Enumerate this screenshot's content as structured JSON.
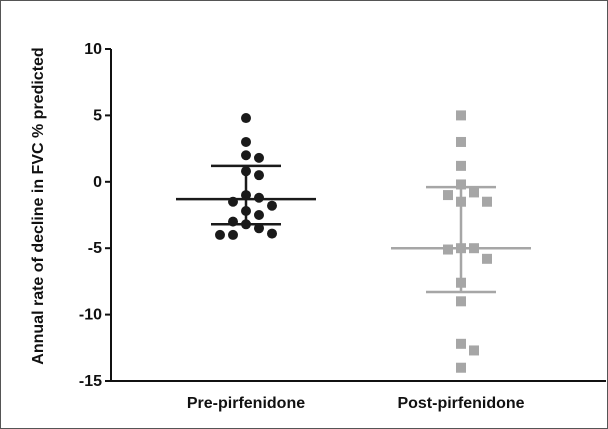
{
  "chart_data": {
    "type": "scatter",
    "title": "",
    "xlabel": "",
    "ylabel": "Annual rate of decline in FVC % predicted",
    "ylim": [
      -15,
      10
    ],
    "yticks": [
      10,
      5,
      0,
      -5,
      -10,
      -15
    ],
    "grid": false,
    "legend": "none",
    "categories": [
      "Pre-pirfenidone",
      "Post-pirfenidone"
    ],
    "series": [
      {
        "category": "Pre-pirfenidone",
        "marker": "circle",
        "color": "#1a1a1a",
        "values": [
          4.8,
          3.0,
          2.0,
          1.8,
          0.8,
          0.5,
          -1.0,
          -1.2,
          -1.5,
          -1.8,
          -2.2,
          -2.5,
          -3.0,
          -3.2,
          -3.5,
          -3.9,
          -4.0,
          -4.0
        ],
        "mean": -1.3,
        "sd_upper": 1.2,
        "sd_lower": -3.2
      },
      {
        "category": "Post-pirfenidone",
        "marker": "square",
        "color": "#a6a6a6",
        "values": [
          5.0,
          3.0,
          1.2,
          -0.2,
          -0.8,
          -1.0,
          -1.5,
          -1.5,
          -5.0,
          -5.0,
          -5.1,
          -5.8,
          -7.6,
          -9.0,
          -12.2,
          -12.7,
          -14.0
        ],
        "mean": -5.0,
        "sd_upper": -0.4,
        "sd_lower": -8.3
      }
    ]
  }
}
